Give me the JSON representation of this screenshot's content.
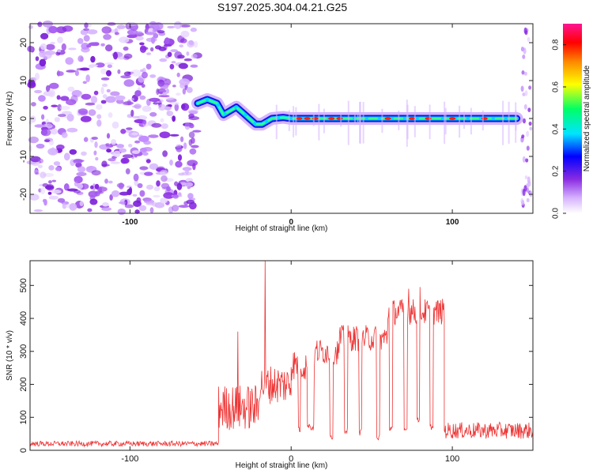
{
  "title": "S197.2025.304.04.21.G25",
  "chart_data": [
    {
      "type": "heatmap",
      "title": "S197.2025.304.04.21.G25",
      "xlabel": "Height of straight line (km)",
      "ylabel": "Frequency (Hz)",
      "xlim": [
        -162,
        150
      ],
      "ylim": [
        -25,
        25
      ],
      "xticks": [
        -100,
        0,
        100
      ],
      "yticks": [
        20,
        10,
        0,
        -10,
        -20
      ],
      "colorbar": {
        "label": "Normalized spectral amplitude",
        "range": [
          0.0,
          0.9
        ],
        "ticks": [
          0.0,
          0.2,
          0.4,
          0.6,
          0.8
        ],
        "colors": [
          "#ffffff",
          "#d6b4ff",
          "#8a2be2",
          "#0000ff",
          "#00e5ff",
          "#00ff66",
          "#ffff00",
          "#ff8800",
          "#ff0000",
          "#ff1493"
        ]
      },
      "noise_region_x": [
        -162,
        -58
      ],
      "signal_track": [
        {
          "x": -58,
          "y": 4
        },
        {
          "x": -52,
          "y": 5
        },
        {
          "x": -46,
          "y": 4
        },
        {
          "x": -42,
          "y": 1
        },
        {
          "x": -38,
          "y": 2
        },
        {
          "x": -34,
          "y": 3
        },
        {
          "x": -30,
          "y": 1.5
        },
        {
          "x": -26,
          "y": 0
        },
        {
          "x": -22,
          "y": -1.5
        },
        {
          "x": -18,
          "y": -1.5
        },
        {
          "x": -12,
          "y": 0
        },
        {
          "x": -5,
          "y": 0.3
        },
        {
          "x": 0,
          "y": 0
        },
        {
          "x": 50,
          "y": 0
        },
        {
          "x": 100,
          "y": 0
        },
        {
          "x": 140,
          "y": 0
        }
      ],
      "peak_amplitude_x": [
        5,
        10,
        15,
        25,
        30,
        60,
        75,
        85,
        100,
        120
      ]
    },
    {
      "type": "line",
      "xlabel": "Height of straight line (km)",
      "ylabel": "SNR (10 * v/v)",
      "xlim": [
        -162,
        150
      ],
      "ylim": [
        0,
        575
      ],
      "xticks": [
        -100,
        0,
        100
      ],
      "yticks": [
        0,
        100,
        200,
        300,
        400,
        500
      ],
      "color": "#ee3333",
      "series": [
        {
          "name": "SNR",
          "segments": [
            {
              "x": [
                -162,
                -45
              ],
              "mean": 20,
              "jitter": 8
            },
            {
              "x": [
                -45,
                -20
              ],
              "mean": 130,
              "jitter": 70
            },
            {
              "x": [
                -20,
                0
              ],
              "mean": 200,
              "jitter": 60
            },
            {
              "x": [
                0,
                15
              ],
              "mean": 260,
              "jitter": 50
            },
            {
              "x": [
                15,
                30
              ],
              "mean": 300,
              "jitter": 40
            },
            {
              "x": [
                30,
                60
              ],
              "mean": 340,
              "jitter": 40
            },
            {
              "x": [
                60,
                95
              ],
              "mean": 420,
              "jitter": 40
            },
            {
              "x": [
                95,
                150
              ],
              "mean": 60,
              "jitter": 25
            }
          ],
          "spikes": [
            {
              "x": -16,
              "y": 575
            },
            {
              "x": -33,
              "y": 360
            },
            {
              "x": 80,
              "y": 495
            },
            {
              "x": 73,
              "y": 490
            }
          ],
          "dropouts": [
            {
              "x": [
                10,
                14
              ],
              "y": 70
            },
            {
              "x": 5,
              "y": 60
            },
            {
              "x": [
                24,
                26
              ],
              "y": 40
            },
            {
              "x": [
                33,
                35
              ],
              "y": 60
            },
            {
              "x": [
                42,
                44
              ],
              "y": 55
            },
            {
              "x": [
                53,
                55
              ],
              "y": 40
            },
            {
              "x": [
                61,
                63
              ],
              "y": 70
            },
            {
              "x": [
                70,
                72
              ],
              "y": 65
            },
            {
              "x": [
                78,
                80
              ],
              "y": 90
            },
            {
              "x": [
                86,
                88
              ],
              "y": 70
            }
          ]
        }
      ]
    }
  ]
}
